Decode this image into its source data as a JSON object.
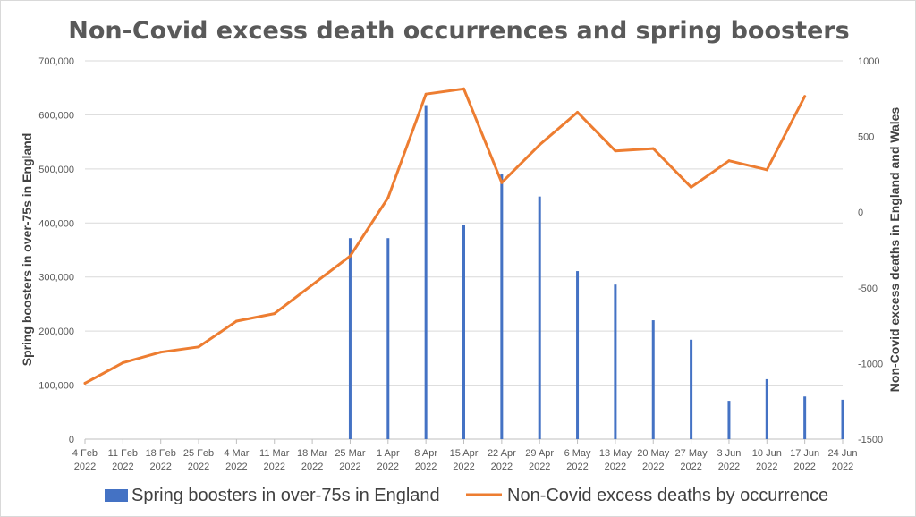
{
  "chart_data": {
    "type": "bar+line",
    "title": "Non-Covid excess death occurrences and spring boosters",
    "categories": [
      [
        "4 Feb",
        "2022"
      ],
      [
        "11 Feb",
        "2022"
      ],
      [
        "18 Feb",
        "2022"
      ],
      [
        "25 Feb",
        "2022"
      ],
      [
        "4 Mar",
        "2022"
      ],
      [
        "11 Mar",
        "2022"
      ],
      [
        "18 Mar",
        "2022"
      ],
      [
        "25 Mar",
        "2022"
      ],
      [
        "1 Apr",
        "2022"
      ],
      [
        "8 Apr",
        "2022"
      ],
      [
        "15 Apr",
        "2022"
      ],
      [
        "22 Apr",
        "2022"
      ],
      [
        "29 Apr",
        "2022"
      ],
      [
        "6 May",
        "2022"
      ],
      [
        "13 May",
        "2022"
      ],
      [
        "20 May",
        "2022"
      ],
      [
        "27 May",
        "2022"
      ],
      [
        "3 Jun",
        "2022"
      ],
      [
        "10 Jun",
        "2022"
      ],
      [
        "17 Jun",
        "2022"
      ],
      [
        "24 Jun",
        "2022"
      ]
    ],
    "series": [
      {
        "name": "Spring boosters in over-75s in England",
        "type": "bar",
        "axis": "left",
        "color": "#4472C4",
        "values": [
          0,
          0,
          0,
          0,
          0,
          0,
          0,
          372000,
          372000,
          618000,
          397000,
          490000,
          449000,
          311000,
          286000,
          220000,
          184000,
          71000,
          111000,
          79000,
          73000
        ]
      },
      {
        "name": "Non-Covid excess deaths by occurrence",
        "type": "line",
        "axis": "right",
        "color": "#ED7D31",
        "values": [
          -1130,
          -995,
          -925,
          -890,
          -720,
          -670,
          -480,
          -290,
          95,
          780,
          815,
          195,
          445,
          660,
          405,
          420,
          165,
          340,
          280,
          765,
          null
        ]
      }
    ],
    "y_left": {
      "label": "Spring boosters in over-75s in England",
      "min": 0,
      "max": 700000,
      "step": 100000,
      "tick_labels": [
        "0",
        "100,000",
        "200,000",
        "300,000",
        "400,000",
        "500,000",
        "600,000",
        "700,000"
      ]
    },
    "y_right": {
      "label": "Non-Covid excess deaths in England and Wales",
      "min": -1500,
      "max": 1000,
      "step": 500,
      "tick_labels": [
        "-1500",
        "-1000",
        "-500",
        "0",
        "500",
        "1000"
      ]
    },
    "grid": "horizontal",
    "legend_position": "bottom",
    "legend": [
      {
        "label": "Spring boosters in over-75s in England",
        "color": "#4472C4",
        "kind": "bar"
      },
      {
        "label": "Non-Covid excess deaths by occurrence",
        "color": "#ED7D31",
        "kind": "line"
      }
    ]
  }
}
